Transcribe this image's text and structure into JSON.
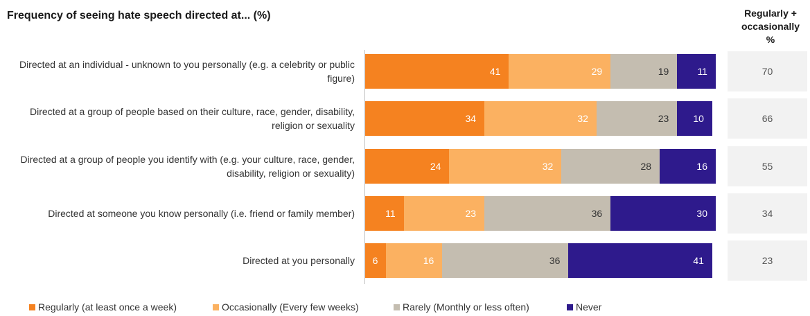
{
  "chart_data": {
    "type": "bar",
    "orientation": "horizontal",
    "stacked": true,
    "title": "Frequency of seeing hate speech directed at... (%)",
    "categories": [
      "Directed at an individual - unknown to you personally (e.g. a celebrity or public figure)",
      "Directed at a group of people based on their culture, race, gender, disability, religion or sexuality",
      "Directed at a group of people you identify with (e.g. your culture, race, gender, disability, religion or sexuality)",
      "Directed at someone you know personally (i.e. friend or family member)",
      "Directed at you personally"
    ],
    "series": [
      {
        "name": "Regularly (at least once a week)",
        "color": "#f58220",
        "label_color": "#ffffff",
        "values": [
          41,
          34,
          24,
          11,
          6
        ]
      },
      {
        "name": "Occasionally (Every few weeks)",
        "color": "#fbb161",
        "label_color": "#ffffff",
        "values": [
          29,
          32,
          32,
          23,
          16
        ]
      },
      {
        "name": "Rarely (Monthly or less often)",
        "color": "#c4bdb0",
        "label_color": "#333333",
        "values": [
          19,
          23,
          28,
          36,
          36
        ]
      },
      {
        "name": "Never",
        "color": "#2e1a8c",
        "label_color": "#ffffff",
        "values": [
          11,
          10,
          16,
          30,
          41
        ]
      }
    ],
    "xlim": [
      0,
      100
    ],
    "side_column": {
      "title": "Regularly + occasionally %",
      "values": [
        70,
        66,
        55,
        34,
        23
      ]
    }
  }
}
